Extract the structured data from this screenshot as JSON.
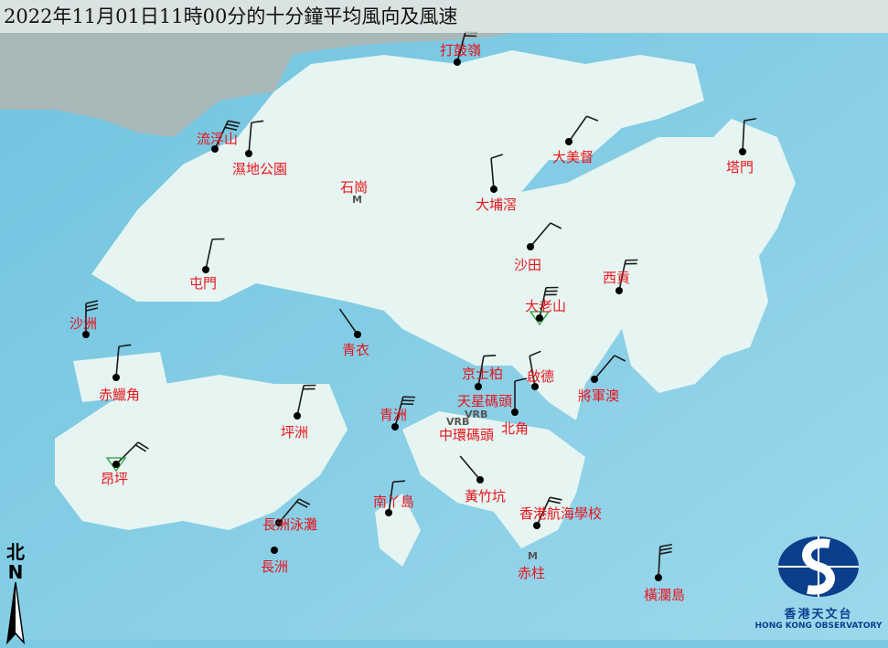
{
  "title": "2022年11月01日11時00分的十分鐘平均風向及風速",
  "colors": {
    "sea": "#7cc9e2",
    "land": "#e6f5f1",
    "label": "#e8141c",
    "barb": "#1a1a1a"
  },
  "stations": [
    {
      "name": "打鼓嶺",
      "wind_from_deg": 15,
      "feathers": 2,
      "marker": "dot"
    },
    {
      "name": "流浮山",
      "wind_from_deg": 25,
      "feathers": 3,
      "marker": "dot"
    },
    {
      "name": "濕地公園",
      "wind_from_deg": 5,
      "feathers": 1,
      "marker": "dot"
    },
    {
      "name": "大美督",
      "wind_from_deg": 35,
      "feathers": 1,
      "marker": "dot"
    },
    {
      "name": "塔門",
      "wind_from_deg": 3,
      "feathers": 1,
      "marker": "dot"
    },
    {
      "name": "大埔滘",
      "wind_from_deg": 355,
      "feathers": 1,
      "marker": "dot"
    },
    {
      "name": "沙田",
      "wind_from_deg": 40,
      "feathers": 1,
      "marker": "dot"
    },
    {
      "name": "屯門",
      "wind_from_deg": 12,
      "feathers": 1,
      "marker": "dot"
    },
    {
      "name": "西貢",
      "wind_from_deg": 12,
      "feathers": 2,
      "marker": "dot"
    },
    {
      "name": "沙洲",
      "wind_from_deg": 0,
      "feathers": 3,
      "marker": "dot"
    },
    {
      "name": "大老山",
      "wind_from_deg": 12,
      "feathers": 3,
      "marker": "triangle"
    },
    {
      "name": "青衣",
      "wind_from_deg": 325,
      "feathers": 0,
      "marker": "dot"
    },
    {
      "name": "赤鱲角",
      "wind_from_deg": 5,
      "feathers": 1,
      "marker": "dot"
    },
    {
      "name": "京士柏",
      "wind_from_deg": 10,
      "feathers": 1,
      "marker": "dot"
    },
    {
      "name": "啟德",
      "wind_from_deg": 350,
      "feathers": 1,
      "marker": "dot"
    },
    {
      "name": "將軍澳",
      "wind_from_deg": 40,
      "feathers": 1,
      "marker": "dot"
    },
    {
      "name": "北角",
      "wind_from_deg": 0,
      "feathers": 1,
      "marker": "dot"
    },
    {
      "name": "青洲",
      "wind_from_deg": 15,
      "feathers": 3,
      "marker": "dot"
    },
    {
      "name": "坪洲",
      "wind_from_deg": 12,
      "feathers": 2,
      "marker": "dot"
    },
    {
      "name": "昂坪",
      "wind_from_deg": 45,
      "feathers": 2,
      "marker": "triangle"
    },
    {
      "name": "黃竹坑",
      "wind_from_deg": 320,
      "feathers": 0,
      "marker": "dot"
    },
    {
      "name": "南丫島",
      "wind_from_deg": 8,
      "feathers": 1,
      "marker": "dot"
    },
    {
      "name": "香港航海學校",
      "wind_from_deg": 25,
      "feathers": 2,
      "marker": "dot"
    },
    {
      "name": "長洲泳灘",
      "wind_from_deg": 40,
      "feathers": 2,
      "marker": "dot"
    },
    {
      "name": "長洲",
      "wind_from_deg": null,
      "feathers": 0,
      "marker": "dot"
    },
    {
      "name": "橫瀾島",
      "wind_from_deg": 3,
      "feathers": 3,
      "marker": "dot"
    }
  ],
  "labels_only": [
    "石崗",
    "天星碼頭",
    "中環碼頭",
    "赤柱"
  ],
  "markers": {
    "m": "M",
    "vrb": "VRB"
  },
  "north": {
    "zh": "北",
    "en": "N"
  },
  "logo": {
    "zh": "香港天文台",
    "en": "HONG KONG OBSERVATORY"
  }
}
